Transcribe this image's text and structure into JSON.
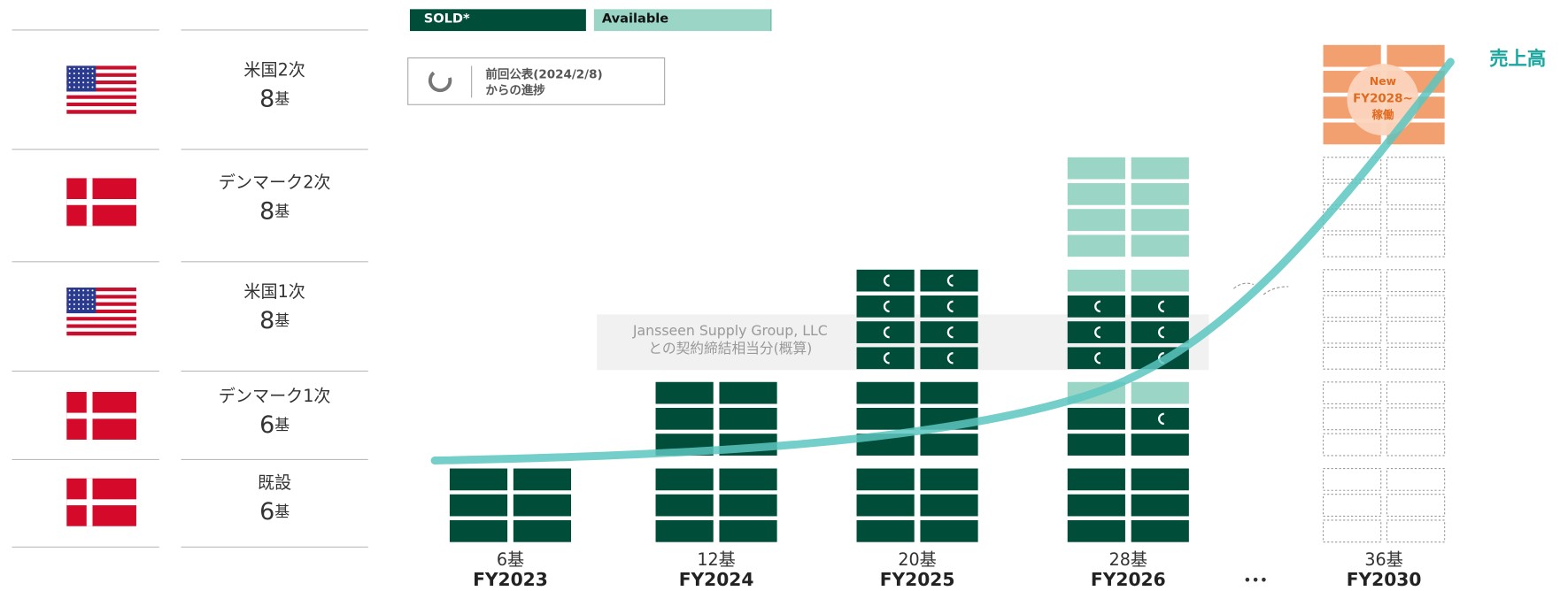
{
  "legend": {
    "sold": "SOLD*",
    "available": "Available"
  },
  "progress_note": [
    "前回公表(2024/2/8)",
    "からの進捗"
  ],
  "sites": [
    {
      "label": "米国2次",
      "count": 8,
      "unit": "基",
      "flag": "us"
    },
    {
      "label": "デンマーク2次",
      "count": 8,
      "unit": "基",
      "flag": "dk"
    },
    {
      "label": "米国1次",
      "count": 8,
      "unit": "基",
      "flag": "us"
    },
    {
      "label": "デンマーク1次",
      "count": 6,
      "unit": "基",
      "flag": "dk"
    },
    {
      "label": "既設",
      "count": 6,
      "unit": "基",
      "flag": "dk"
    }
  ],
  "chart_data": {
    "type": "stacked-blocks",
    "categories": [
      "FY2023",
      "FY2024",
      "FY2025",
      "FY2026",
      "FY2030"
    ],
    "values": [
      6,
      12,
      20,
      28,
      36
    ],
    "unit": "基",
    "cells": [
      [
        "ss",
        "ss",
        "ss"
      ],
      [
        "ss",
        "ss",
        "ss",
        "ss",
        "ss",
        "ss"
      ],
      [
        "ss",
        "ss",
        "ss",
        "ss",
        "ss",
        "ss",
        "cc",
        "cc",
        "cc",
        "cc"
      ],
      [
        "ss",
        "ss",
        "ss",
        "ss",
        "sc",
        "aa",
        "cc",
        "cc",
        "cc",
        "aa",
        "aa",
        "aa",
        "aa",
        "aa"
      ],
      [
        "ee",
        "ee",
        "ee",
        "ee",
        "ee",
        "ee",
        "ee",
        "ee",
        "ee",
        "ee",
        "ee",
        "ee",
        "ee",
        "ee",
        "oo",
        "oo",
        "oo",
        "oo"
      ]
    ],
    "annotation": [
      "Jansseen Supply Group, LLC",
      "との契約締結相当分(概算)"
    ],
    "line_label": "売上高",
    "new_badge": [
      "New",
      "FY2028~",
      "稼働"
    ],
    "ellipsis": "•••",
    "colors": {
      "sold": "#004d3a",
      "available": "#9ad5c5",
      "new": "#f2a070",
      "line": "#5cc6c0",
      "label": "#1aa7a0"
    }
  }
}
